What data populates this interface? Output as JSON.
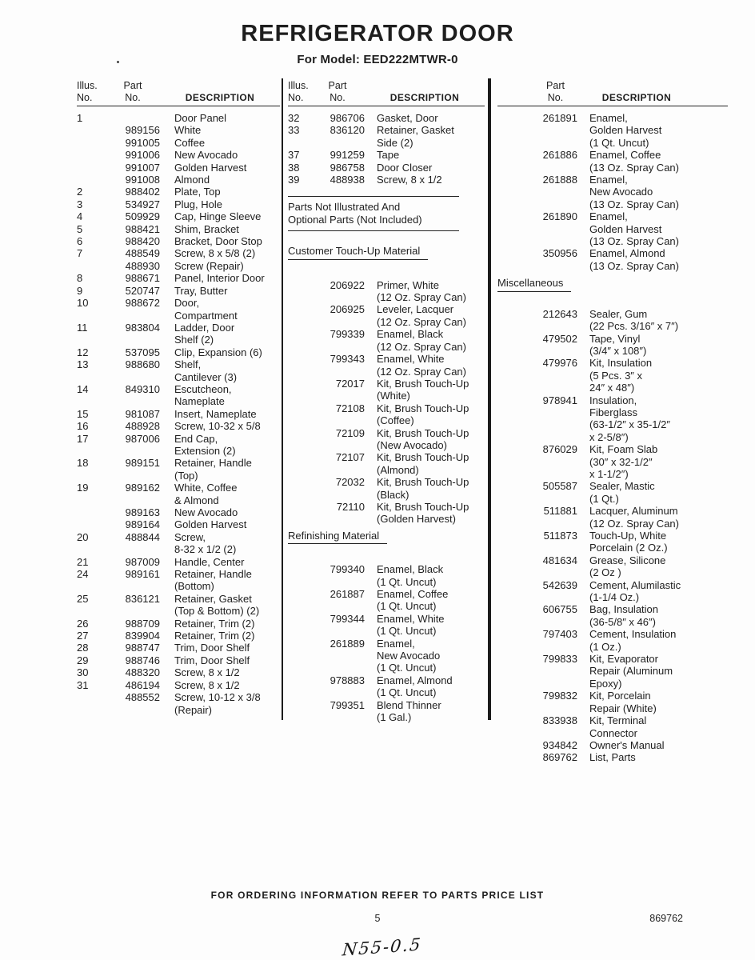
{
  "page": {
    "title": "REFRIGERATOR DOOR",
    "subtitle": "For Model: EED222MTWR-0",
    "footer_note": "FOR ORDERING INFORMATION REFER TO PARTS PRICE LIST",
    "page_number": "5",
    "doc_number": "869762",
    "handwritten_note": "N55-0.5"
  },
  "columns": [
    {
      "header": {
        "illus": "Illus.\nNo.",
        "part": "Part\nNo.",
        "desc": "DESCRIPTION"
      },
      "blocks": [
        {
          "type": "rows",
          "rows": [
            {
              "illus": "1",
              "desc": "Door Panel"
            },
            {
              "part": "989156",
              "desc": "White"
            },
            {
              "part": "991005",
              "desc": "Coffee"
            },
            {
              "part": "991006",
              "desc": "New Avocado"
            },
            {
              "part": "991007",
              "desc": "Golden Harvest"
            },
            {
              "part": "991008",
              "desc": "Almond"
            },
            {
              "illus": "2",
              "part": "988402",
              "desc": "Plate, Top"
            },
            {
              "illus": "3",
              "part": "534927",
              "desc": "Plug, Hole"
            },
            {
              "illus": "4",
              "part": "509929",
              "desc": "Cap, Hinge Sleeve"
            },
            {
              "illus": "5",
              "part": "988421",
              "desc": "Shim, Bracket"
            },
            {
              "illus": "6",
              "part": "988420",
              "desc": "Bracket, Door Stop"
            },
            {
              "illus": "7",
              "part": "488549",
              "desc": "Screw, 8 x 5/8 (2)"
            },
            {
              "part": "488930",
              "desc": "Screw (Repair)"
            },
            {
              "illus": "8",
              "part": "988671",
              "desc": "Panel, Interior Door"
            },
            {
              "illus": "9",
              "part": "520747",
              "desc": "Tray, Butter"
            },
            {
              "illus": "10",
              "part": "988672",
              "desc": "Door,\nCompartment"
            },
            {
              "illus": "11",
              "part": "983804",
              "desc": "Ladder, Door\nShelf (2)"
            },
            {
              "illus": "12",
              "part": "537095",
              "desc": "Clip, Expansion (6)"
            },
            {
              "illus": "13",
              "part": "988680",
              "desc": "Shelf,\nCantilever (3)"
            },
            {
              "illus": "14",
              "part": "849310",
              "desc": "Escutcheon,\nNameplate"
            },
            {
              "illus": "15",
              "part": "981087",
              "desc": "Insert, Nameplate"
            },
            {
              "illus": "16",
              "part": "488928",
              "desc": "Screw, 10-32 x 5/8"
            },
            {
              "illus": "17",
              "part": "987006",
              "desc": "End Cap,\nExtension (2)"
            },
            {
              "illus": "18",
              "part": "989151",
              "desc": "Retainer, Handle\n(Top)"
            },
            {
              "illus": "19",
              "part": "989162",
              "desc": "White, Coffee\n& Almond"
            },
            {
              "part": "989163",
              "desc": "New Avocado"
            },
            {
              "part": "989164",
              "desc": "Golden Harvest"
            },
            {
              "illus": "20",
              "part": "488844",
              "desc": "Screw,\n8-32 x 1/2 (2)"
            },
            {
              "illus": "21",
              "part": "987009",
              "desc": "Handle, Center"
            },
            {
              "illus": "24",
              "part": "989161",
              "desc": "Retainer, Handle\n(Bottom)"
            },
            {
              "illus": "25",
              "part": "836121",
              "desc": "Retainer, Gasket\n(Top & Bottom) (2)"
            },
            {
              "illus": "26",
              "part": "988709",
              "desc": "Retainer, Trim (2)"
            },
            {
              "illus": "27",
              "part": "839904",
              "desc": "Retainer, Trim (2)"
            },
            {
              "illus": "28",
              "part": "988747",
              "desc": "Trim, Door Shelf"
            },
            {
              "illus": "29",
              "part": "988746",
              "desc": "Trim, Door Shelf"
            },
            {
              "illus": "30",
              "part": "488320",
              "desc": "Screw, 8 x 1/2"
            },
            {
              "illus": "31",
              "part": "486194",
              "desc": "Screw, 8 x 1/2"
            },
            {
              "part": "488552",
              "desc": "Screw, 10-12 x 3/8\n(Repair)"
            }
          ]
        }
      ]
    },
    {
      "header": {
        "illus": "Illus.\nNo.",
        "part": "Part\nNo.",
        "desc": "DESCRIPTION"
      },
      "blocks": [
        {
          "type": "rows",
          "rows": [
            {
              "illus": "32",
              "part": "986706",
              "desc": "Gasket, Door"
            },
            {
              "illus": "33",
              "part": "836120",
              "desc": "Retainer, Gasket\nSide (2)"
            },
            {
              "illus": "37",
              "part": "991259",
              "desc": "Tape"
            },
            {
              "illus": "38",
              "part": "986758",
              "desc": "Door Closer"
            },
            {
              "illus": "39",
              "part": "488938",
              "desc": "Screw, 8 x 1/2"
            }
          ]
        },
        {
          "type": "note",
          "name": "parts-not-illustrated-note",
          "text": "Parts Not Illustrated And\nOptional Parts (Not Included)"
        },
        {
          "type": "title",
          "name": "customer-touch-up-section-title",
          "text": "Customer Touch-Up Material"
        },
        {
          "type": "rows",
          "rows": [
            {
              "part": "206922",
              "desc": "Primer, White\n(12 Oz. Spray Can)"
            },
            {
              "part": "206925",
              "desc": "Leveler, Lacquer\n(12 Oz. Spray Can)"
            },
            {
              "part": "799339",
              "desc": "Enamel, Black\n(12 Oz. Spray Can)"
            },
            {
              "part": "799343",
              "desc": "Enamel, White\n(12 Oz. Spray Can)"
            },
            {
              "part": "72017",
              "desc": "Kit, Brush Touch-Up\n(White)"
            },
            {
              "part": "72108",
              "desc": "Kit, Brush Touch-Up\n(Coffee)"
            },
            {
              "part": "72109",
              "desc": "Kit, Brush Touch-Up\n(New Avocado)"
            },
            {
              "part": "72107",
              "desc": "Kit, Brush Touch-Up\n(Almond)"
            },
            {
              "part": "72032",
              "desc": "Kit, Brush Touch-Up\n(Black)"
            },
            {
              "part": "72110",
              "desc": "Kit, Brush Touch-Up\n(Golden Harvest)"
            }
          ]
        },
        {
          "type": "title",
          "name": "refinishing-material-section-title",
          "text": "Refinishing Material"
        },
        {
          "type": "rows",
          "rows": [
            {
              "part": "799340",
              "desc": "Enamel, Black\n(1 Qt. Uncut)"
            },
            {
              "part": "261887",
              "desc": "Enamel, Coffee\n(1 Qt. Uncut)"
            },
            {
              "part": "799344",
              "desc": "Enamel, White\n(1 Qt. Uncut)"
            },
            {
              "part": "261889",
              "desc": "Enamel,\nNew Avocado\n(1 Qt. Uncut)"
            },
            {
              "part": "978883",
              "desc": "Enamel, Almond\n(1 Qt. Uncut)"
            },
            {
              "part": "799351",
              "desc": "Blend Thinner\n(1 Gal.)"
            }
          ]
        }
      ]
    },
    {
      "header": {
        "part": "Part\nNo.",
        "desc": "DESCRIPTION"
      },
      "blocks": [
        {
          "type": "rows",
          "rows": [
            {
              "part": "261891",
              "desc": "Enamel,\nGolden Harvest\n(1 Qt. Uncut)"
            },
            {
              "part": "261886",
              "desc": "Enamel, Coffee\n(13 Oz. Spray Can)"
            },
            {
              "part": "261888",
              "desc": "Enamel,\nNew Avocado\n(13 Oz. Spray Can)"
            },
            {
              "part": "261890",
              "desc": "Enamel,\nGolden Harvest\n(13 Oz. Spray Can)"
            },
            {
              "part": "350956",
              "desc": "Enamel, Almond\n(13 Oz. Spray Can)"
            }
          ]
        },
        {
          "type": "title",
          "name": "miscellaneous-section-title",
          "text": "Miscellaneous"
        },
        {
          "type": "rows",
          "rows": [
            {
              "part": "212643",
              "desc": "Sealer, Gum\n(22 Pcs. 3/16″ x 7″)"
            },
            {
              "part": "479502",
              "desc": "Tape, Vinyl\n(3/4″ x 108″)"
            },
            {
              "part": "479976",
              "desc": "Kit, Insulation\n(5 Pcs. 3″ x\n24″ x 48″)"
            },
            {
              "part": "978941",
              "desc": "Insulation,\nFiberglass\n(63-1/2″ x 35-1/2″\nx 2-5/8″)"
            },
            {
              "part": "876029",
              "desc": "Kit, Foam Slab\n(30″ x 32-1/2″\nx 1-1/2″)"
            },
            {
              "part": "505587",
              "desc": "Sealer, Mastic\n(1 Qt.)"
            },
            {
              "part": "511881",
              "desc": "Lacquer, Aluminum\n(12 Oz. Spray Can)"
            },
            {
              "part": "511873",
              "desc": "Touch-Up, White\nPorcelain (2 Oz.)"
            },
            {
              "part": "481634",
              "desc": "Grease, Silicone\n(2 Oz )"
            },
            {
              "part": "542639",
              "desc": "Cement, Alumilastic\n(1-1/4 Oz.)"
            },
            {
              "part": "606755",
              "desc": "Bag, Insulation\n(36-5/8″ x 46″)"
            },
            {
              "part": "797403",
              "desc": "Cement, Insulation\n(1 Oz.)"
            },
            {
              "part": "799833",
              "desc": "Kit, Evaporator\nRepair (Aluminum\nEpoxy)"
            },
            {
              "part": "799832",
              "desc": "Kit, Porcelain\nRepair (White)"
            },
            {
              "part": "833938",
              "desc": "Kit, Terminal\nConnector"
            },
            {
              "part": "934842",
              "desc": "Owner's Manual"
            },
            {
              "part": "869762",
              "desc": "List, Parts"
            }
          ]
        }
      ]
    }
  ]
}
